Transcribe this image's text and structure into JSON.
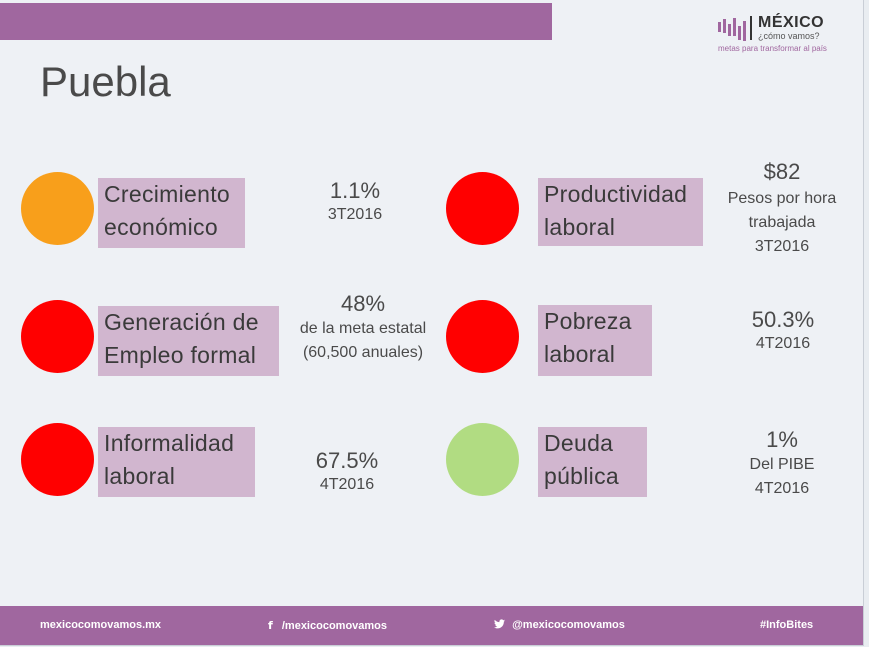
{
  "header": {
    "logo_title": "MÉXICO",
    "logo_subtitle": "¿cómo vamos?",
    "logo_tagline": "metas para transformar al país"
  },
  "page_title": "Puebla",
  "indicators": [
    {
      "label_line1": "Crecimiento",
      "label_line2": "económico",
      "status_color": "#f89f1b",
      "value": "1.1%",
      "detail1": "3T2016",
      "detail2": "",
      "detail3": ""
    },
    {
      "label_line1": "Productividad",
      "label_line2": "laboral",
      "status_color": "#ff0000",
      "value": "$82",
      "detail1": "Pesos por hora",
      "detail2": "trabajada",
      "detail3": "3T2016"
    },
    {
      "label_line1": "Generación de",
      "label_line2": "Empleo formal",
      "status_color": "#ff0000",
      "value": "48%",
      "detail1": "de la meta estatal",
      "detail2": "(60,500 anuales)",
      "detail3": ""
    },
    {
      "label_line1": "Pobreza",
      "label_line2": "laboral",
      "status_color": "#ff0000",
      "value": "50.3%",
      "detail1": "4T2016",
      "detail2": "",
      "detail3": ""
    },
    {
      "label_line1": "Informalidad",
      "label_line2": "laboral",
      "status_color": "#ff0000",
      "value": "67.5%",
      "detail1": "4T2016",
      "detail2": "",
      "detail3": ""
    },
    {
      "label_line1": "Deuda",
      "label_line2": "pública",
      "status_color": "#b1dc82",
      "value": "1%",
      "detail1": "Del PIBE",
      "detail2": "4T2016",
      "detail3": ""
    }
  ],
  "footer": {
    "website": "mexicocomovamos.mx",
    "facebook": "/mexicocomovamos",
    "twitter": "@mexicocomovamos",
    "hashtag": "#InfoBites"
  }
}
